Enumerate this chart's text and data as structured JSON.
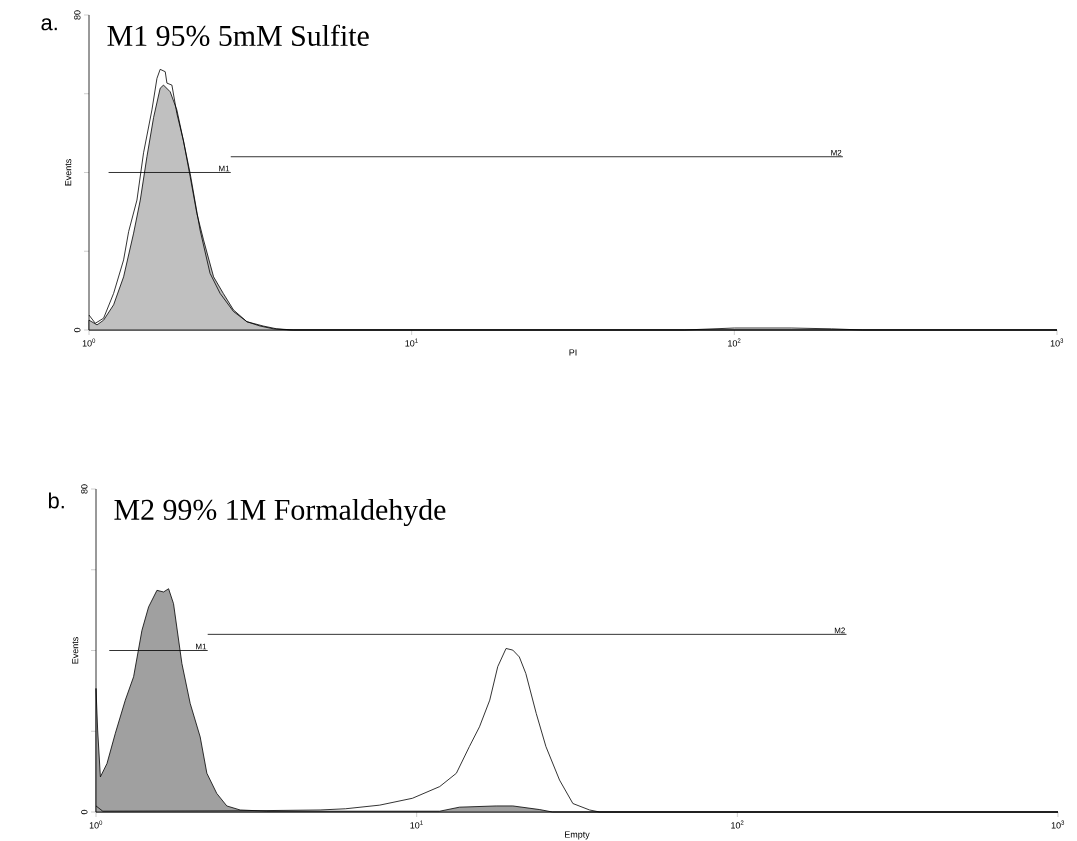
{
  "chart_data": [
    {
      "type": "area",
      "title": "M1 95%  5mM Sulfite",
      "xlabel": "PI",
      "ylabel": "Events",
      "log": "x",
      "xlim": [
        1,
        1000
      ],
      "ylim": [
        0,
        80
      ],
      "xticks": [
        {
          "value": 1,
          "label": "10$^{0}$"
        },
        {
          "value": 10,
          "label": "10$^{1}$"
        },
        {
          "value": 100,
          "label": "10$^{2}$"
        },
        {
          "value": 1000,
          "label": "10$^{3}$"
        }
      ],
      "yticks": [
        0,
        {
          "value": 20,
          "label": null
        },
        {
          "value": 40,
          "label": null
        },
        {
          "value": 60,
          "label": null
        },
        80
      ],
      "annotations": [
        "a."
      ],
      "series": [
        {
          "color": "#c0c0c0",
          "x": [
            1.0,
            1.059,
            1.11,
            1.192,
            1.28,
            1.375,
            1.442,
            1.512,
            1.586,
            1.662,
            1.702,
            1.785,
            1.872,
            1.963,
            2.058,
            2.159,
            2.264,
            2.433,
            2.607,
            2.804,
            3.086,
            3.391,
            3.727,
            4.19,
            10,
            1000
          ],
          "values": [
            2.5,
            1.3,
            2.5,
            6.4,
            13.5,
            24.6,
            33,
            44,
            54,
            61.4,
            62.2,
            60.5,
            55.9,
            48,
            39,
            29.6,
            22.9,
            13.5,
            9.3,
            5.1,
            2.1,
            1,
            0.3,
            0,
            0,
            0
          ]
        },
        {
          "type": "line",
          "color": "#000000",
          "x": [
            1.0,
            1.046,
            1.11,
            1.192,
            1.28,
            1.327,
            1.408,
            1.476,
            1.567,
            1.624,
            1.662,
            1.723,
            1.744,
            1.807,
            1.872,
            1.963,
            2.058,
            2.209,
            2.372,
            2.549,
            2.804,
            3.086,
            3.471,
            3.815,
            4.3,
            70,
            100,
            150,
            200,
            250,
            1000
          ],
          "values": [
            3.8,
            1.7,
            3,
            9.3,
            17.8,
            25,
            33,
            45,
            55.9,
            63.9,
            66.2,
            65.6,
            62.7,
            62.2,
            55,
            48,
            39.8,
            25.4,
            14.4,
            9.3,
            4.7,
            2.1,
            1,
            0.3,
            0,
            0,
            0.5,
            0.5,
            0.3,
            0,
            0
          ]
        },
        {
          "type": "line",
          "name": "M1",
          "color": "#000000",
          "x": [
            1.15,
            2.75
          ],
          "values": [
            40,
            40
          ]
        },
        {
          "type": "line",
          "name": "M2",
          "color": "#000000",
          "x": [
            2.75,
            217
          ],
          "values": [
            44,
            44
          ]
        }
      ]
    },
    {
      "type": "area",
      "title": "M2 99%  1M Formaldehyde",
      "xlabel": "Empty",
      "ylabel": "Events",
      "log": "x",
      "xlim": [
        1,
        1000
      ],
      "ylim": [
        0,
        80
      ],
      "xticks": [
        {
          "value": 1,
          "label": "10$^{0}$"
        },
        {
          "value": 10,
          "label": "10$^{1}$"
        },
        {
          "value": 100,
          "label": "10$^{2}$"
        },
        {
          "value": 1000,
          "label": "10$^{3}$"
        }
      ],
      "yticks": [
        0,
        {
          "value": 20,
          "label": null
        },
        {
          "value": 40,
          "label": null
        },
        {
          "value": 60,
          "label": null
        },
        80
      ],
      "annotations": [
        "b."
      ],
      "series": [
        {
          "color": "#a0a0a0",
          "x": [
            1.0,
            1.012,
            1.032,
            1.082,
            1.149,
            1.234,
            1.31,
            1.391,
            1.459,
            1.549,
            1.625,
            1.684,
            1.745,
            1.853,
            1.967,
            2.113,
            2.217,
            2.38,
            2.558,
            2.815,
            3.409,
            11.8,
            13.6,
            17.7,
            19.95,
            24.2,
            26.5,
            1000
          ],
          "values": [
            30.6,
            20.3,
            8.7,
            12,
            19.5,
            27.7,
            33.5,
            45,
            50.8,
            54.9,
            54.5,
            55.3,
            51.6,
            36.8,
            26.9,
            18.6,
            9.6,
            4.6,
            1.5,
            0.5,
            0.2,
            0.2,
            1.2,
            1.5,
            1.5,
            0.6,
            0,
            0
          ]
        },
        {
          "type": "line",
          "color": "#000000",
          "x": [
            1.0,
            1.05,
            3,
            5,
            6,
            7.67,
            9.7,
            11.8,
            13.3,
            14.6,
            15.7,
            16.9,
            17.9,
            19.0,
            19.95,
            20.9,
            21.9,
            23.6,
            25.3,
            27.9,
            30.7,
            34.6,
            37.2,
            1000
          ],
          "values": [
            1.5,
            0.2,
            0.3,
            0.5,
            0.8,
            1.7,
            3.4,
            6.3,
            9.6,
            16.2,
            21.1,
            27.7,
            36,
            40.5,
            40.1,
            38.4,
            34.3,
            24.4,
            16.2,
            7.9,
            2.1,
            0.5,
            0,
            0
          ]
        },
        {
          "type": "line",
          "name": "M1",
          "color": "#000000",
          "x": [
            1.1,
            2.23
          ],
          "values": [
            40,
            40
          ]
        },
        {
          "type": "line",
          "name": "M2",
          "color": "#000000",
          "x": [
            2.23,
            219
          ],
          "values": [
            44,
            44
          ]
        }
      ]
    }
  ]
}
